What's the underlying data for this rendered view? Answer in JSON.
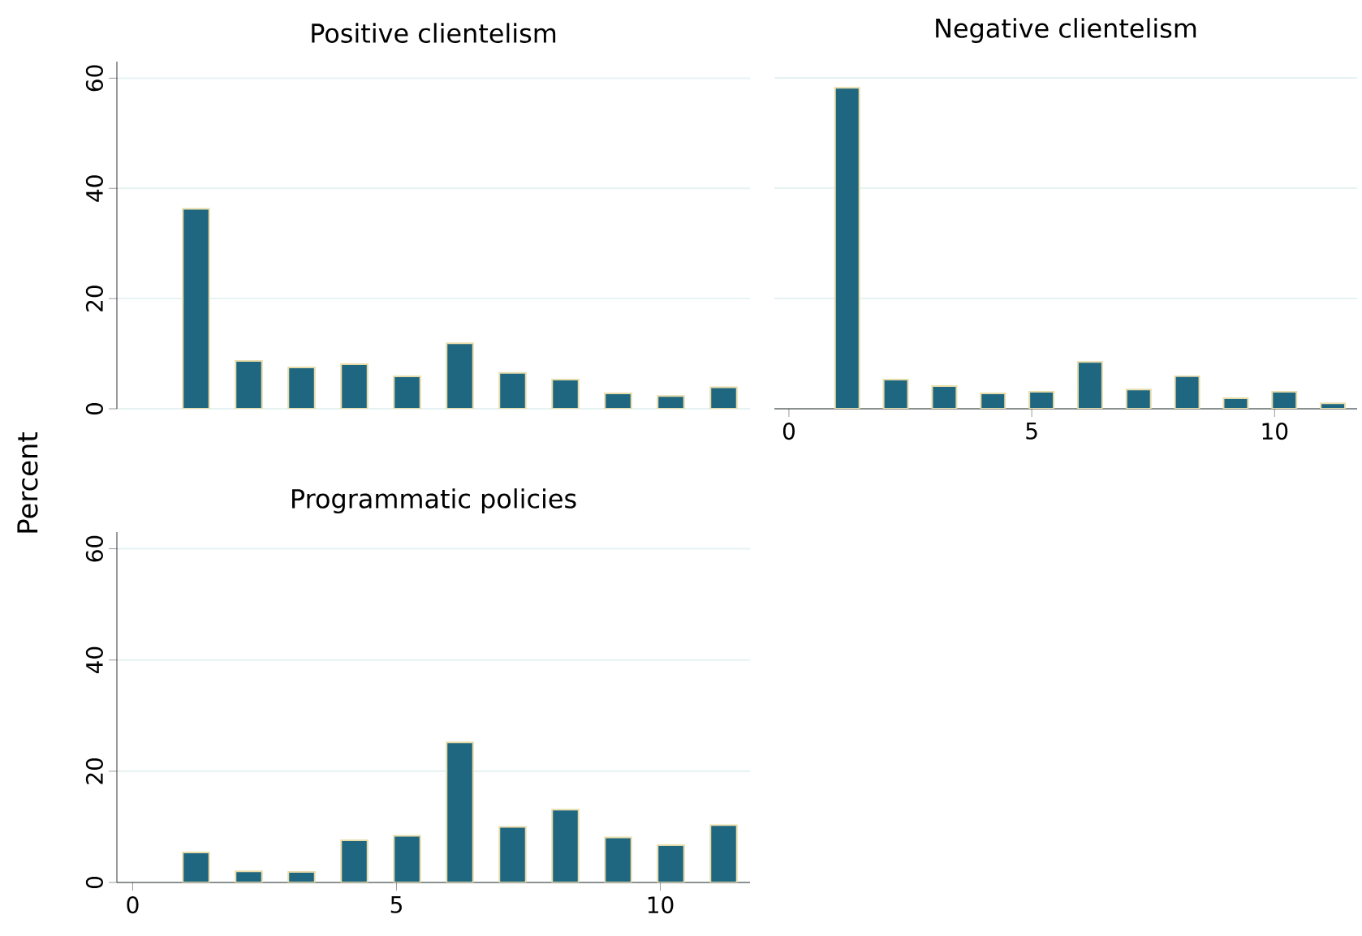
{
  "chart_data": [
    {
      "type": "bar",
      "title": "Positive clientelism",
      "ylabel": "Percent",
      "x": [
        1.2,
        2.2,
        3.2,
        4.2,
        5.2,
        6.2,
        7.2,
        8.2,
        9.2,
        10.2,
        11.2
      ],
      "values": [
        36.3,
        8.7,
        7.5,
        8.1,
        5.9,
        11.9,
        6.5,
        5.3,
        2.8,
        2.3,
        3.9
      ],
      "color": "#1f6680",
      "xlim": [
        -0.3,
        11.7
      ],
      "ylim": [
        0,
        63
      ],
      "xticks": [
        0,
        5,
        10
      ],
      "yticks": [
        0,
        20,
        40,
        60
      ],
      "grid": "y",
      "tick_labels": "y"
    },
    {
      "type": "bar",
      "title": "Negative clientelism",
      "x": [
        1.2,
        2.2,
        3.2,
        4.2,
        5.2,
        6.2,
        7.2,
        8.2,
        9.2,
        10.2,
        11.2
      ],
      "values": [
        58.2,
        5.3,
        4.1,
        2.8,
        3.1,
        8.5,
        3.5,
        5.9,
        1.9,
        3.1,
        1.0
      ],
      "color": "#1f6680",
      "xlim": [
        -0.3,
        11.7
      ],
      "ylim": [
        0,
        60
      ],
      "xticks": [
        0,
        5,
        10
      ],
      "yticks": [
        0,
        20,
        40,
        60
      ],
      "grid": "y",
      "tick_labels": "x"
    },
    {
      "type": "bar",
      "title": "Programmatic policies",
      "x": [
        1.2,
        2.2,
        3.2,
        4.2,
        5.2,
        6.2,
        7.2,
        8.2,
        9.2,
        10.2,
        11.2
      ],
      "values": [
        5.4,
        2.0,
        1.9,
        7.6,
        8.4,
        25.2,
        10.0,
        13.1,
        8.1,
        6.7,
        10.3
      ],
      "color": "#1f6680",
      "xlim": [
        -0.3,
        11.7
      ],
      "ylim": [
        0,
        63
      ],
      "xticks": [
        0,
        5,
        10
      ],
      "yticks": [
        0,
        20,
        40,
        60
      ],
      "grid": "y"
    }
  ]
}
